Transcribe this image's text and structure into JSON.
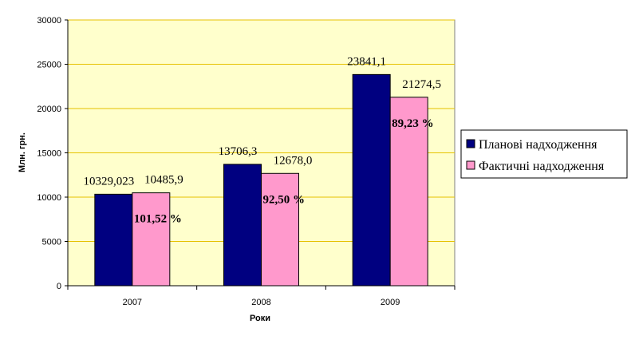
{
  "chart_data": {
    "type": "bar",
    "categories": [
      "2007",
      "2008",
      "2009"
    ],
    "series": [
      {
        "name": "Планові надходження",
        "values": [
          10329.023,
          13706.3,
          23841.1
        ],
        "labels": [
          "10329,023",
          "13706,3",
          "23841,1"
        ],
        "color": "#000080"
      },
      {
        "name": "Фактичні надходження",
        "values": [
          10485.9,
          12678.0,
          21274.5
        ],
        "labels": [
          "10485,9",
          "12678,0",
          "21274,5"
        ],
        "color": "#ff99cc"
      }
    ],
    "percent_labels": [
      "101,52 %",
      "92,50 %",
      "89,23 %"
    ],
    "yticks": [
      "0",
      "5000",
      "10000",
      "15000",
      "20000",
      "25000",
      "30000"
    ],
    "ylim": [
      0,
      30000
    ],
    "ylabel": "Млн. грн.",
    "xlabel": "Роки",
    "grid": true,
    "legend_position": "right",
    "plot_background": "#ffffcc",
    "gridline_color": "#e6c200"
  }
}
